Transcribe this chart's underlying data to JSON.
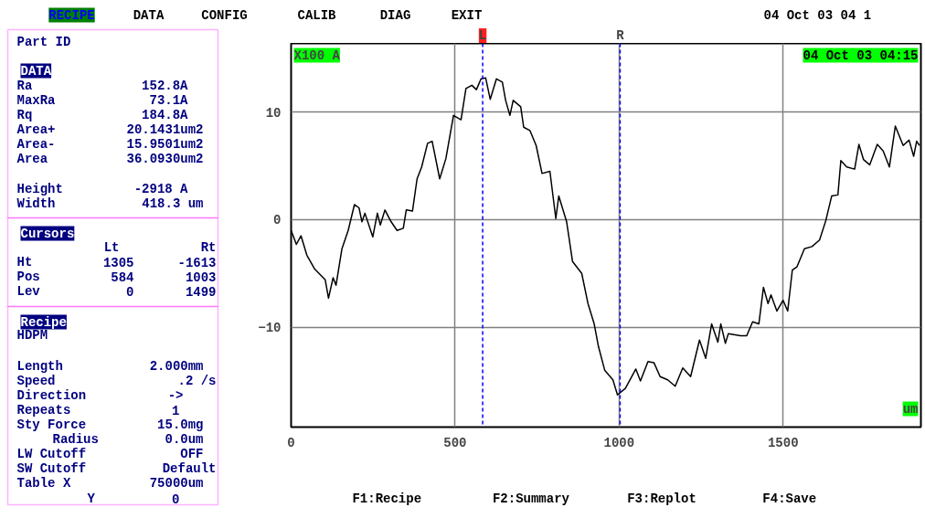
{
  "chart_data": {
    "type": "line",
    "xlabel": "um",
    "ylabel": "X100 A",
    "xlim": [
      0,
      1920
    ],
    "ylim": [
      -19.3,
      16.4
    ],
    "xticks": [
      0,
      500,
      1000,
      1500
    ],
    "yticks": [
      -10,
      0,
      10
    ],
    "grid": true,
    "line_style": "solid",
    "ref_lines": [
      {
        "axis": "x",
        "value": 584,
        "label": "L",
        "color": "#0000ff",
        "line_style": "dashed"
      },
      {
        "axis": "x",
        "value": 1003,
        "label": "R",
        "color": "#0000ff",
        "line_style": "dashed"
      }
    ],
    "annotations": [
      "RECIPE",
      "DATA",
      "CONFIG",
      "CALIB",
      "DIAG",
      "EXIT",
      "04 Oct 03 04 1",
      "04 Oct 03 04:15",
      "Part ID",
      "DATA",
      "Ra",
      "152.8A",
      "MaxRa",
      "73.1A",
      "Rq",
      "184.8A",
      "Area+",
      "20.1431um2",
      "Area-",
      "15.9501um2",
      "Area",
      "36.0930um2",
      "Height",
      "-2918 A",
      "Width",
      "418.3 um",
      "Cursors",
      "Lt",
      "Rt",
      "Ht",
      "1305",
      "-1613",
      "Pos",
      "584",
      "1003",
      "Lev",
      "0",
      "1499",
      "Recipe",
      "HDPM",
      "Length",
      "2.000mm",
      "Speed",
      ".2 /s",
      "Direction",
      "->",
      "Repeats",
      "1",
      "Sty Force",
      "15.0mg",
      "Radius",
      "0.0um",
      "LW Cutoff",
      "OFF",
      "SW Cutoff",
      "Default",
      "Table X",
      "75000um",
      "Y",
      "0",
      "F1:Recipe",
      "F2:Summary",
      "F3:Replot",
      "F4:Save"
    ],
    "series": [
      {
        "color": "#000000",
        "x": [
          0,
          16,
          30,
          48,
          72,
          104,
          114,
          128,
          137,
          155,
          174,
          193,
          207,
          216,
          225,
          249,
          263,
          272,
          286,
          305,
          323,
          342,
          351,
          370,
          384,
          398,
          416,
          430,
          453,
          472,
          495,
          518,
          533,
          551,
          565,
          579,
          593,
          607,
          626,
          644,
          654,
          667,
          677,
          700,
          709,
          728,
          747,
          765,
          789,
          807,
          816,
          840,
          858,
          886,
          905,
          924,
          937,
          956,
          981,
          995,
          1019,
          1051,
          1065,
          1088,
          1106,
          1125,
          1148,
          1171,
          1194,
          1218,
          1245,
          1264,
          1282,
          1301,
          1310,
          1324,
          1333,
          1370,
          1389,
          1407,
          1426,
          1440,
          1454,
          1463,
          1481,
          1500,
          1514,
          1528,
          1542,
          1565,
          1588,
          1611,
          1630,
          1648,
          1667,
          1676,
          1694,
          1718,
          1731,
          1745,
          1764,
          1787,
          1805,
          1824,
          1842,
          1866,
          1884,
          1898,
          1907,
          1916
        ],
        "values": [
          -1.0,
          -2.3,
          -1.5,
          -3.3,
          -4.6,
          -5.6,
          -7.3,
          -5.4,
          -6.1,
          -2.7,
          -1.0,
          1.4,
          1.1,
          -0.2,
          0.6,
          -1.6,
          0.6,
          -0.5,
          0.9,
          -0.2,
          -1.0,
          -0.8,
          0.9,
          0.8,
          3.8,
          4.9,
          7.1,
          7.3,
          3.8,
          5.7,
          9.7,
          9.3,
          12.2,
          12.5,
          12.1,
          13.1,
          13.2,
          11.2,
          13.1,
          12.8,
          11.1,
          9.7,
          11.1,
          10.5,
          8.6,
          8.3,
          6.9,
          4.3,
          4.5,
          0.1,
          2.2,
          -0.2,
          -3.9,
          -5.0,
          -7.8,
          -9.7,
          -11.8,
          -14.0,
          -14.9,
          -16.3,
          -15.7,
          -13.9,
          -15.0,
          -13.2,
          -13.3,
          -14.6,
          -14.9,
          -15.5,
          -13.8,
          -14.6,
          -11.2,
          -12.9,
          -9.7,
          -11.4,
          -9.7,
          -11.5,
          -10.6,
          -10.8,
          -10.8,
          -9.5,
          -9.7,
          -6.3,
          -7.8,
          -7.0,
          -8.5,
          -7.5,
          -8.5,
          -4.7,
          -4.4,
          -2.7,
          -2.5,
          -1.9,
          -0.1,
          2.2,
          2.3,
          5.5,
          4.9,
          4.7,
          7.0,
          5.6,
          5.1,
          7.0,
          6.4,
          4.9,
          8.7,
          6.9,
          7.4,
          5.9,
          7.3,
          6.9
        ]
      }
    ]
  }
}
